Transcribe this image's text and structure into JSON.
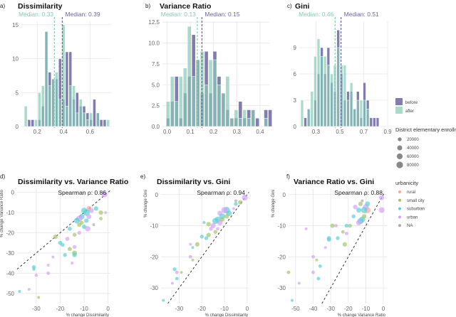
{
  "colors": {
    "before": "#6b66a3",
    "after": "#86cbb6",
    "rural": "#f7a8a0",
    "small city": "#a3c46a",
    "suburban": "#5ccfd6",
    "urban": "#d6a2f5",
    "NA": "#a9a9a9"
  },
  "chart_data": [
    {
      "panel": "a)",
      "type": "bar",
      "title": "Dissimilarity",
      "xticks": [
        "0.2",
        "0.4",
        "0.6"
      ],
      "yticks": [
        "0",
        "5",
        "10",
        "15"
      ],
      "xlim": [
        0.08,
        0.76
      ],
      "ylim": [
        0,
        15.5
      ],
      "bin_start": 0.1,
      "bin_width": 0.026,
      "series": [
        {
          "name": "before",
          "counts": [
            0,
            1,
            1,
            0,
            1,
            3,
            14,
            8,
            7,
            7,
            10,
            4,
            11,
            11,
            4,
            5,
            3,
            3,
            2,
            1,
            4,
            2,
            1,
            1,
            0
          ]
        },
        {
          "name": "after",
          "counts": [
            3,
            0,
            0,
            1,
            5,
            6,
            14,
            6,
            7,
            8,
            4,
            15,
            3,
            6,
            6,
            2,
            4,
            2,
            1,
            2,
            0,
            2,
            0,
            0,
            1
          ]
        }
      ],
      "medians": [
        {
          "series": "after",
          "value": 0.33,
          "label": "Median: 0.33"
        },
        {
          "series": "before",
          "value": 0.39,
          "label": "Median: 0.39"
        }
      ]
    },
    {
      "panel": "b)",
      "type": "bar",
      "title": "Variance Ratio",
      "xticks": [
        "0.0",
        "0.1",
        "0.2",
        "0.3",
        "0.4"
      ],
      "yticks": [
        "0.0",
        "2.5",
        "5.0",
        "7.5",
        "10.0",
        "12.5"
      ],
      "xlim": [
        -0.02,
        0.44
      ],
      "ylim": [
        0,
        12.6
      ],
      "bin_start": -0.005,
      "bin_width": 0.0183,
      "series": [
        {
          "name": "before",
          "counts": [
            1,
            3,
            6,
            1,
            4,
            6,
            11,
            8,
            4,
            9,
            4,
            9,
            6,
            4,
            2,
            1,
            1,
            3,
            1,
            2,
            2,
            1,
            0,
            2,
            2
          ]
        },
        {
          "name": "after",
          "counts": [
            3,
            6,
            3,
            6,
            7,
            12,
            6,
            8,
            9,
            5,
            8,
            8,
            5,
            4,
            6,
            1,
            2,
            1,
            2,
            1,
            2,
            0,
            0,
            1,
            0
          ]
        }
      ],
      "medians": [
        {
          "series": "after",
          "value": 0.13,
          "label": "Median: 0.13"
        },
        {
          "series": "before",
          "value": 0.15,
          "label": "Median: 0.15"
        }
      ]
    },
    {
      "panel": "c)",
      "type": "bar",
      "title": "Gini",
      "xticks": [
        "0.3",
        "0.5",
        "0.7",
        "0.9"
      ],
      "yticks": [
        "0",
        "3",
        "6",
        "9"
      ],
      "xlim": [
        0.16,
        0.9
      ],
      "ylim": [
        0,
        12
      ],
      "bin_start": 0.17,
      "bin_width": 0.0275,
      "series": [
        {
          "name": "before",
          "counts": [
            0,
            1,
            2,
            0,
            3,
            6,
            9,
            6,
            9,
            5,
            4,
            11,
            6,
            3,
            4,
            4,
            2,
            4,
            1,
            5,
            3,
            1,
            1,
            1,
            0
          ]
        },
        {
          "name": "after",
          "counts": [
            3,
            0,
            2,
            4,
            8,
            10,
            8,
            8,
            7,
            6,
            7,
            9,
            7,
            7,
            3,
            5,
            2,
            3,
            3,
            3,
            2,
            0,
            0,
            0,
            0
          ]
        }
      ],
      "medians": [
        {
          "series": "after",
          "value": 0.46,
          "label": "Median: 0.46"
        },
        {
          "series": "before",
          "value": 0.51,
          "label": "Median: 0.51"
        }
      ]
    },
    {
      "panel": "d)",
      "type": "scatter",
      "title": "Dissimilarity vs. Variance Ratio",
      "xlabel": "% change Dissimilarity",
      "ylabel": "% change Variance Ratio",
      "annotation": "Spearman ρ: 0.86",
      "xticks": [
        "-30",
        "-20",
        "-10",
        "0"
      ],
      "yticks": [
        "0",
        "-10",
        "-20",
        "-30",
        "-40",
        "-50"
      ],
      "xlim": [
        -38,
        1
      ],
      "ylim": [
        -55,
        2
      ],
      "points": [
        [
          -1.5,
          -1,
          60000,
          "urban"
        ],
        [
          -8,
          -8,
          40000,
          "rural"
        ],
        [
          -5,
          -8,
          30000,
          "suburban"
        ],
        [
          -3,
          -10,
          30000,
          "small city"
        ],
        [
          -9,
          -10,
          80000,
          "suburban"
        ],
        [
          -10,
          -9,
          60000,
          "suburban"
        ],
        [
          -7,
          -9,
          40000,
          "urban"
        ],
        [
          -11,
          -12,
          50000,
          "suburban"
        ],
        [
          -12,
          -13,
          70000,
          "urban"
        ],
        [
          -13,
          -14,
          60000,
          "suburban"
        ],
        [
          -8,
          -12,
          40000,
          "urban"
        ],
        [
          -9,
          -14,
          30000,
          "suburban"
        ],
        [
          -10,
          -17,
          30000,
          "suburban"
        ],
        [
          -8.5,
          -18,
          50000,
          "urban"
        ],
        [
          -3,
          -13,
          15000,
          "small city"
        ],
        [
          -11,
          -15,
          20000,
          "small city"
        ],
        [
          -12,
          -16,
          30000,
          "small city"
        ],
        [
          -16,
          -18,
          25000,
          "suburban"
        ],
        [
          -22,
          -22,
          30000,
          "small city"
        ],
        [
          -17,
          -23,
          25000,
          "urban"
        ],
        [
          -14,
          -21,
          20000,
          "small city"
        ],
        [
          -12,
          -20,
          20000,
          "urban"
        ],
        [
          -20,
          -25,
          25000,
          "suburban"
        ],
        [
          -19,
          -26,
          20000,
          "suburban"
        ],
        [
          -16,
          -28,
          25000,
          "small city"
        ],
        [
          -14,
          -27,
          20000,
          "urban"
        ],
        [
          -14,
          -30,
          40000,
          "small city"
        ],
        [
          -14,
          -31,
          30000,
          "suburban"
        ],
        [
          -18,
          -31,
          20000,
          "suburban"
        ],
        [
          -23,
          -32,
          8000,
          "urban"
        ],
        [
          -15,
          -35,
          10000,
          "urban"
        ],
        [
          -25,
          -36,
          8000,
          "urban"
        ],
        [
          -31,
          -37,
          20000,
          "suburban"
        ],
        [
          -31,
          -38,
          12000,
          "suburban"
        ],
        [
          -25,
          -40,
          15000,
          "urban"
        ],
        [
          -30,
          -41,
          12000,
          "urban"
        ],
        [
          -37,
          -49,
          8000,
          "suburban"
        ],
        [
          -33,
          -48,
          8000,
          "urban"
        ],
        [
          -29,
          -52,
          8000,
          "small city"
        ],
        [
          -6,
          -16,
          8000,
          "NA"
        ],
        [
          -1,
          -10,
          8000,
          "urban"
        ]
      ]
    },
    {
      "panel": "e)",
      "type": "scatter",
      "title": "Dissimilarity vs. Gini",
      "xlabel": "% change Dissimilarity",
      "ylabel": "% change Gini",
      "annotation": "Spearman ρ: 0.94",
      "xticks": [
        "-30",
        "-20",
        "-10",
        "0"
      ],
      "yticks": [
        "0",
        "-10",
        "-20",
        "-30"
      ],
      "xlim": [
        -38,
        1
      ],
      "ylim": [
        -35,
        2
      ],
      "points": [
        [
          -1,
          -1,
          60000,
          "urban"
        ],
        [
          -3,
          -2.5,
          30000,
          "small city"
        ],
        [
          -5,
          -3,
          20000,
          "suburban"
        ],
        [
          -9,
          -5,
          80000,
          "suburban"
        ],
        [
          -10,
          -5,
          70000,
          "urban"
        ],
        [
          -8,
          -6,
          50000,
          "suburban"
        ],
        [
          -12,
          -6,
          40000,
          "urban"
        ],
        [
          -11,
          -7,
          60000,
          "suburban"
        ],
        [
          -9,
          -7,
          30000,
          "small city"
        ],
        [
          -13,
          -8,
          60000,
          "suburban"
        ],
        [
          -14,
          -8.5,
          70000,
          "suburban"
        ],
        [
          -12,
          -9,
          50000,
          "urban"
        ],
        [
          -11,
          -8,
          30000,
          "small city"
        ],
        [
          -15,
          -10,
          40000,
          "urban"
        ],
        [
          -17,
          -9.5,
          30000,
          "small city"
        ],
        [
          -19,
          -9,
          10000,
          "suburban"
        ],
        [
          -16,
          -11,
          20000,
          "urban"
        ],
        [
          -14,
          -12,
          20000,
          "small city"
        ],
        [
          -13,
          -11,
          15000,
          "urban"
        ],
        [
          -17,
          -13,
          30000,
          "small city"
        ],
        [
          -18,
          -14,
          20000,
          "suburban"
        ],
        [
          -20,
          -13.5,
          20000,
          "suburban"
        ],
        [
          -22,
          -16,
          30000,
          "small city"
        ],
        [
          -25,
          -16,
          8000,
          "urban"
        ],
        [
          -24,
          -17,
          8000,
          "suburban"
        ],
        [
          -25,
          -20,
          15000,
          "urban"
        ],
        [
          -24,
          -21,
          8000,
          "small city"
        ],
        [
          -32,
          -24,
          20000,
          "suburban"
        ],
        [
          -31,
          -25,
          15000,
          "urban"
        ],
        [
          -29,
          -25,
          8000,
          "small city"
        ],
        [
          -31,
          -27,
          15000,
          "suburban"
        ],
        [
          -33,
          -28.5,
          8000,
          "urban"
        ],
        [
          -37,
          -34,
          8000,
          "suburban"
        ],
        [
          -6,
          -4.5,
          8000,
          "urban"
        ],
        [
          -5,
          -2,
          8000,
          "NA"
        ]
      ]
    },
    {
      "panel": "f)",
      "type": "scatter",
      "title": "Variance Ratio vs. Gini",
      "xlabel": "% change Variance Ratio",
      "ylabel": "% change Gini",
      "annotation": "Spearman ρ: 0.88",
      "xticks": [
        "-50",
        "-40",
        "-30",
        "-20",
        "-10",
        "0"
      ],
      "yticks": [
        "0",
        "-10",
        "-20",
        "-30"
      ],
      "xlim": [
        -54,
        2
      ],
      "ylim": [
        -35,
        2
      ],
      "points": [
        [
          -1,
          -1,
          40000,
          "urban"
        ],
        [
          -1,
          -5,
          60000,
          "urban"
        ],
        [
          -9,
          -5,
          70000,
          "rural"
        ],
        [
          -10,
          -4,
          60000,
          "urban"
        ],
        [
          -11,
          -5,
          70000,
          "suburban"
        ],
        [
          -9,
          -3,
          40000,
          "suburban"
        ],
        [
          -13,
          -3,
          30000,
          "small city"
        ],
        [
          -16,
          -4,
          30000,
          "urban"
        ],
        [
          -14,
          -5,
          40000,
          "suburban"
        ],
        [
          -12,
          -8,
          60000,
          "suburban"
        ],
        [
          -13,
          -8.5,
          70000,
          "suburban"
        ],
        [
          -14,
          -9,
          50000,
          "urban"
        ],
        [
          -11,
          -7,
          30000,
          "small city"
        ],
        [
          -17,
          -7,
          20000,
          "suburban"
        ],
        [
          -19,
          -10,
          20000,
          "small city"
        ],
        [
          -21,
          -10,
          20000,
          "suburban"
        ],
        [
          -29,
          -10,
          30000,
          "small city"
        ],
        [
          -27,
          -10,
          15000,
          "urban"
        ],
        [
          -23,
          -12,
          15000,
          "small city"
        ],
        [
          -21,
          -12.5,
          15000,
          "urban"
        ],
        [
          -31,
          -14,
          25000,
          "suburban"
        ],
        [
          -31,
          -14.5,
          25000,
          "suburban"
        ],
        [
          -26,
          -14,
          20000,
          "suburban"
        ],
        [
          -22,
          -16,
          30000,
          "small city"
        ],
        [
          -33,
          -17,
          8000,
          "urban"
        ],
        [
          -40,
          -20,
          15000,
          "urban"
        ],
        [
          -38,
          -21,
          8000,
          "small city"
        ],
        [
          -36,
          -23,
          15000,
          "suburban"
        ],
        [
          -40,
          -25,
          15000,
          "urban"
        ],
        [
          -37,
          -27,
          15000,
          "suburban"
        ],
        [
          -48,
          -28.5,
          8000,
          "urban"
        ],
        [
          -52,
          -34,
          8000,
          "suburban"
        ],
        [
          -54,
          -25,
          15000,
          "small city"
        ],
        [
          -44,
          -11,
          8000,
          "urban"
        ],
        [
          -12,
          -2,
          8000,
          "NA"
        ]
      ]
    }
  ],
  "legend_fill": {
    "items": [
      "before",
      "after"
    ]
  },
  "legend_size": {
    "title": "District elementary enrollment",
    "items": [
      "20000",
      "40000",
      "60000",
      "80000"
    ],
    "values": [
      20000,
      40000,
      60000,
      80000
    ]
  },
  "legend_color": {
    "title": "urbanicity",
    "items": [
      "rural",
      "small city",
      "suburban",
      "urban",
      "NA"
    ]
  }
}
